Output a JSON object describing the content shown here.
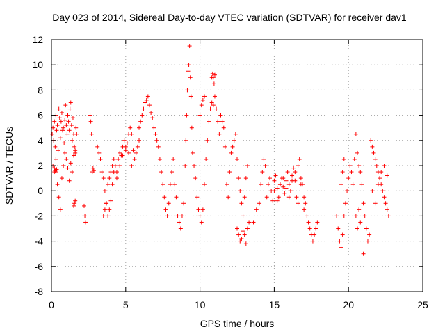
{
  "chart_data": {
    "type": "scatter",
    "title": "Day 023 of 2014, Sidereal Day-to-day VTEC variation (SDTVAR) for receiver dav1",
    "xlabel": "GPS time / hours",
    "ylabel": "SDTVAR / TECUs",
    "xlim": [
      0,
      25
    ],
    "ylim": [
      -8,
      12
    ],
    "xticks": [
      0,
      5,
      10,
      15,
      20,
      25
    ],
    "yticks": [
      -8,
      -6,
      -4,
      -2,
      0,
      2,
      4,
      6,
      8,
      10,
      12
    ],
    "xtick_labels": [
      "0",
      "5",
      "10",
      "15",
      "20",
      "25"
    ],
    "ytick_labels": [
      "-8",
      "-6",
      "-4",
      "-2",
      "0",
      "2",
      "4",
      "6",
      "8",
      "10",
      "12"
    ],
    "grid": true,
    "marker": "+",
    "color": "#ff0000",
    "series": [
      {
        "name": "SDTVAR",
        "x": [
          0.05,
          0.1,
          0.15,
          0.2,
          0.25,
          0.3,
          0.35,
          0.4,
          0.45,
          0.5,
          0.55,
          0.6,
          0.65,
          0.7,
          0.75,
          0.8,
          0.85,
          0.9,
          0.95,
          1.0,
          1.05,
          1.1,
          1.15,
          1.2,
          1.25,
          1.3,
          1.35,
          1.4,
          1.45,
          1.5,
          1.55,
          1.6,
          1.65,
          1.7,
          0.1,
          0.2,
          0.3,
          0.4,
          0.5,
          0.6,
          0.7,
          0.8,
          0.9,
          1.0,
          1.1,
          1.2,
          1.3,
          1.4,
          1.5,
          1.6,
          0.2,
          0.25,
          0.3,
          0.35,
          1.5,
          1.55,
          1.6,
          2.2,
          2.25,
          2.3,
          2.6,
          2.65,
          2.7,
          2.75,
          2.8,
          2.85,
          3.1,
          3.2,
          3.3,
          3.4,
          3.5,
          3.6,
          3.7,
          3.8,
          3.9,
          4.0,
          4.1,
          4.2,
          4.3,
          4.4,
          4.5,
          4.6,
          4.7,
          4.8,
          4.9,
          5.0,
          5.1,
          5.2,
          5.3,
          5.4,
          5.5,
          5.6,
          5.7,
          5.8,
          5.9,
          3.5,
          3.6,
          3.7,
          3.8,
          3.9,
          4.0,
          4.1,
          4.2,
          4.4,
          4.6,
          4.8,
          5.0,
          5.2,
          5.4,
          5.9,
          6.0,
          6.1,
          6.2,
          6.3,
          6.4,
          6.5,
          6.6,
          6.7,
          6.8,
          6.9,
          7.0,
          7.1,
          7.2,
          7.3,
          7.4,
          7.5,
          7.6,
          7.7,
          7.8,
          7.9,
          8.0,
          8.1,
          8.2,
          8.3,
          8.4,
          8.5,
          8.6,
          8.7,
          8.8,
          8.9,
          9.0,
          9.05,
          9.1,
          9.15,
          9.2,
          9.25,
          9.3,
          9.35,
          9.4,
          9.45,
          9.5,
          9.6,
          9.7,
          9.8,
          9.9,
          10.0,
          10.1,
          10.2,
          10.3,
          10.4,
          10.5,
          10.6,
          10.7,
          10.8,
          10.9,
          11.0,
          11.1,
          11.2,
          11.3,
          11.4,
          11.5,
          11.6,
          11.7,
          10.0,
          10.1,
          10.2,
          10.3,
          10.8,
          10.85,
          10.9,
          10.95,
          11.0,
          11.8,
          11.9,
          12.0,
          12.1,
          12.2,
          12.3,
          12.4,
          12.5,
          12.6,
          12.7,
          12.8,
          12.9,
          13.0,
          13.1,
          13.2,
          12.5,
          12.6,
          12.7,
          12.8,
          12.9,
          13.0,
          13.1,
          13.2,
          13.3,
          13.6,
          13.8,
          14.0,
          14.1,
          14.2,
          14.3,
          14.4,
          14.5,
          14.6,
          14.7,
          14.8,
          14.9,
          15.0,
          15.1,
          15.2,
          15.3,
          15.4,
          15.5,
          15.6,
          15.7,
          15.8,
          15.9,
          16.0,
          16.1,
          16.2,
          16.3,
          16.4,
          16.5,
          16.6,
          16.7,
          16.8,
          16.9,
          17.0,
          17.1,
          17.2,
          17.3,
          17.4,
          17.5,
          17.6,
          17.7,
          17.8,
          17.9,
          15.0,
          15.2,
          15.4,
          15.6,
          15.8,
          16.0,
          16.2,
          16.4,
          16.6,
          16.8,
          17.0,
          19.2,
          19.3,
          19.4,
          19.5,
          19.6,
          19.7,
          19.8,
          19.9,
          20.0,
          20.1,
          20.2,
          20.3,
          20.4,
          20.5,
          20.6,
          20.7,
          20.8,
          20.9,
          21.0,
          21.1,
          21.2,
          21.3,
          21.4,
          19.5,
          19.6,
          19.7,
          20.5,
          20.6,
          20.7,
          20.8,
          21.0,
          21.5,
          21.6,
          21.7,
          21.8,
          21.9,
          22.0,
          22.1,
          22.2,
          22.3,
          22.4,
          22.5,
          22.6,
          22.7,
          21.6,
          21.8,
          22.0,
          22.2,
          22.4,
          22.6
        ],
        "y": [
          4.5,
          5.0,
          4.0,
          5.5,
          3.5,
          6.0,
          4.8,
          5.2,
          3.2,
          6.5,
          5.8,
          4.2,
          5.5,
          6.2,
          4.8,
          5.0,
          3.8,
          5.6,
          6.8,
          5.2,
          4.5,
          6.0,
          5.5,
          4.8,
          6.5,
          7.0,
          5.2,
          4.0,
          5.8,
          4.5,
          3.5,
          3.0,
          5.0,
          4.5,
          2.0,
          1.5,
          2.5,
          0.5,
          -0.5,
          -1.5,
          1.0,
          2.0,
          3.0,
          2.5,
          1.8,
          0.8,
          2.2,
          1.5,
          2.8,
          3.2,
          1.8,
          1.6,
          1.5,
          1.7,
          -1.2,
          -1.0,
          -0.8,
          -1.2,
          -2.0,
          -2.5,
          6.0,
          5.5,
          4.5,
          1.5,
          1.8,
          1.6,
          3.5,
          3.0,
          2.5,
          1.5,
          1.0,
          0.0,
          -1.0,
          -2.0,
          -1.5,
          -0.8,
          0.5,
          1.5,
          2.0,
          1.0,
          2.5,
          3.0,
          2.8,
          3.5,
          4.0,
          3.2,
          3.8,
          4.5,
          5.0,
          4.5,
          3.2,
          2.5,
          3.0,
          3.5,
          4.0,
          -2.0,
          -1.5,
          -1.0,
          0.5,
          1.0,
          1.5,
          2.0,
          2.5,
          1.5,
          2.0,
          2.8,
          3.5,
          3.0,
          2.0,
          5.0,
          5.5,
          6.0,
          6.5,
          7.0,
          7.2,
          7.5,
          6.8,
          6.2,
          5.8,
          5.0,
          4.5,
          4.0,
          3.5,
          2.5,
          1.5,
          0.5,
          -0.5,
          -1.5,
          -2.0,
          -1.0,
          0.5,
          1.5,
          2.5,
          0.5,
          -0.5,
          -2.0,
          -2.5,
          -3.0,
          -2.0,
          -1.0,
          2.0,
          4.0,
          6.0,
          8.0,
          9.5,
          10.0,
          11.5,
          9.0,
          7.5,
          5.0,
          3.0,
          2.0,
          1.0,
          -0.5,
          -1.5,
          -2.0,
          -2.5,
          -1.5,
          0.5,
          2.5,
          4.0,
          5.5,
          6.5,
          7.0,
          6.8,
          7.5,
          6.5,
          5.5,
          4.5,
          6.0,
          5.5,
          5.0,
          3.5,
          6.0,
          6.8,
          7.2,
          7.5,
          9.0,
          9.3,
          9.0,
          8.5,
          9.2,
          0.5,
          -0.5,
          1.5,
          3.0,
          3.5,
          4.0,
          4.5,
          2.5,
          1.0,
          0.0,
          -1.0,
          -2.0,
          -0.5,
          1.0,
          2.0,
          -3.0,
          -3.5,
          -4.0,
          -3.8,
          -3.2,
          -3.5,
          -4.2,
          -3.0,
          -2.5,
          -2.5,
          -1.5,
          -1.0,
          0.5,
          1.5,
          2.5,
          2.0,
          -0.5,
          0.5,
          1.0,
          0.0,
          -0.8,
          0.8,
          1.2,
          0.2,
          -0.5,
          0.5,
          1.0,
          0.3,
          -0.2,
          0.8,
          1.5,
          0.5,
          0.0,
          1.2,
          1.8,
          0.8,
          -0.5,
          2.0,
          2.5,
          1.0,
          0.5,
          -0.5,
          -1.0,
          -2.0,
          -2.5,
          -3.0,
          -3.5,
          -4.0,
          -3.5,
          -3.0,
          -2.5,
          0.0,
          -0.8,
          0.5,
          1.0,
          0.2,
          -0.5,
          0.8,
          1.5,
          -1.0,
          0.5,
          -1.5,
          -2.0,
          -3.0,
          -4.0,
          -4.5,
          -3.5,
          -2.0,
          -1.0,
          0.0,
          1.0,
          2.0,
          1.5,
          0.5,
          2.5,
          4.5,
          3.0,
          2.0,
          1.5,
          0.5,
          -1.0,
          -2.0,
          -3.0,
          -4.0,
          -3.5,
          0.5,
          1.5,
          2.5,
          -2.0,
          -3.0,
          -1.5,
          -2.5,
          -5.0,
          4.0,
          3.5,
          3.0,
          2.5,
          2.0,
          1.5,
          1.0,
          0.5,
          0.0,
          -0.5,
          -1.0,
          -1.5,
          -2.0,
          0.0,
          -1.0,
          0.5,
          1.5,
          2.0,
          1.2
        ]
      }
    ]
  }
}
